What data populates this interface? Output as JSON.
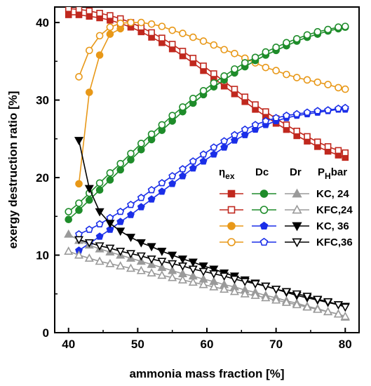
{
  "chart_data": {
    "type": "line",
    "title": "",
    "xlabel": "ammonia mass fraction [%]",
    "ylabel": "exergy destruction ratio [%]",
    "xlim": [
      38,
      82
    ],
    "ylim": [
      0,
      42
    ],
    "xticks": [
      40,
      50,
      60,
      70,
      80
    ],
    "yticks": [
      0,
      10,
      20,
      30,
      40
    ],
    "legend_position": "right-middle",
    "legend": {
      "headers": [
        "ηex",
        "Dc",
        "Dr",
        "PHbar"
      ],
      "rows": [
        "KC,  24",
        "KFC,24",
        "KC,  36",
        "KFC,36"
      ]
    },
    "series": [
      {
        "label": "ηex, KC, 24",
        "color": "#c0281e",
        "marker": "square-filled",
        "x": [
          40,
          41.5,
          43,
          44.5,
          46,
          47.5,
          49,
          50.5,
          52,
          53.5,
          55,
          56.5,
          58,
          59.5,
          61,
          62.5,
          64,
          65.5,
          67,
          68.5,
          70,
          71.5,
          73,
          74.5,
          76,
          77.5,
          79,
          80
        ],
        "y": [
          41.0,
          41.0,
          40.8,
          40.6,
          40.3,
          39.9,
          39.4,
          38.8,
          38.1,
          37.4,
          36.6,
          35.7,
          34.8,
          33.8,
          32.8,
          31.8,
          30.8,
          29.8,
          28.8,
          27.9,
          27.0,
          26.2,
          25.4,
          24.7,
          24.0,
          23.4,
          22.9,
          22.6
        ]
      },
      {
        "label": "ηex, KFC, 24",
        "color": "#c0281e",
        "marker": "square-open",
        "x": [
          40,
          41.5,
          43,
          44.5,
          46,
          47.5,
          49,
          50.5,
          52,
          53.5,
          55,
          56.5,
          58,
          59.5,
          61,
          62.5,
          64,
          65.5,
          67,
          68.5,
          70,
          71.5,
          73,
          74.5,
          76,
          77.5,
          79,
          80
        ],
        "y": [
          41.8,
          41.7,
          41.5,
          41.2,
          40.9,
          40.5,
          40.0,
          39.4,
          38.7,
          38.0,
          37.2,
          36.3,
          35.4,
          34.4,
          33.4,
          32.4,
          31.4,
          30.4,
          29.4,
          28.5,
          27.6,
          26.8,
          26.0,
          25.3,
          24.6,
          24.0,
          23.5,
          23.2
        ]
      },
      {
        "label": "ηex, KC, 36",
        "color": "#e89818",
        "marker": "circle-filled",
        "x": [
          41.5,
          43,
          44.5,
          46,
          47.5
        ],
        "y": [
          19.2,
          31.0,
          35.8,
          38.5,
          39.2
        ]
      },
      {
        "label": "ηex, KFC, 36",
        "color": "#e89818",
        "marker": "circle-open",
        "x": [
          41.5,
          43,
          44.5,
          46,
          47.5,
          49,
          50.5,
          52,
          53.5,
          55,
          56.5,
          58,
          59.5,
          61,
          62.5,
          64,
          65.5,
          67,
          68.5,
          70,
          71.5,
          73,
          74.5,
          76,
          77.5,
          79,
          80
        ],
        "y": [
          33.0,
          36.4,
          38.3,
          39.4,
          39.9,
          40.0,
          40.0,
          39.8,
          39.5,
          39.0,
          38.6,
          38.1,
          37.6,
          37.1,
          36.5,
          36.0,
          35.4,
          34.8,
          34.2,
          33.8,
          33.3,
          32.9,
          32.6,
          32.3,
          32.0,
          31.6,
          31.4
        ]
      },
      {
        "label": "Dc, KC, 24",
        "color": "#1e8c2a",
        "marker": "circle-filled",
        "x": [
          40,
          41.5,
          43,
          44.5,
          46,
          47.5,
          49,
          50.5,
          52,
          53.5,
          55,
          56.5,
          58,
          59.5,
          61,
          62.5,
          64,
          65.5,
          67,
          68.5,
          70,
          71.5,
          73,
          74.5,
          76,
          77.5,
          79,
          80
        ],
        "y": [
          14.6,
          15.8,
          17.1,
          18.4,
          19.7,
          21.0,
          22.3,
          23.6,
          24.9,
          26.1,
          27.3,
          28.5,
          29.6,
          30.7,
          31.7,
          32.6,
          33.5,
          34.3,
          35.1,
          35.8,
          36.4,
          37.0,
          37.6,
          38.1,
          38.5,
          38.9,
          39.2,
          39.4
        ]
      },
      {
        "label": "Dc, KFC, 24",
        "color": "#1e8c2a",
        "marker": "circle-open",
        "x": [
          40,
          41.5,
          43,
          44.5,
          46,
          47.5,
          49,
          50.5,
          52,
          53.5,
          55,
          56.5,
          58,
          59.5,
          61,
          62.5,
          64,
          65.5,
          67,
          68.5,
          70,
          71.5,
          73,
          74.5,
          76,
          77.5,
          79,
          80
        ],
        "y": [
          15.6,
          16.7,
          18.0,
          19.3,
          20.6,
          21.8,
          23.1,
          24.4,
          25.6,
          26.8,
          28.0,
          29.1,
          30.2,
          31.2,
          32.2,
          33.1,
          34.0,
          34.8,
          35.5,
          36.2,
          36.8,
          37.4,
          37.9,
          38.4,
          38.8,
          39.1,
          39.4,
          39.5
        ]
      },
      {
        "label": "Dc, KC, 36",
        "color": "#1a2ee8",
        "marker": "pentagon-filled",
        "x": [
          41.5,
          43,
          44.5,
          46,
          47.5,
          49,
          50.5,
          52,
          53.5,
          55,
          56.5,
          58,
          59.5,
          61,
          62.5,
          64,
          65.5,
          67,
          68.5,
          70,
          71.5,
          73,
          74.5,
          76,
          77.5,
          79,
          80
        ],
        "y": [
          10.6,
          11.5,
          12.4,
          13.3,
          14.3,
          15.2,
          16.2,
          17.2,
          18.2,
          19.2,
          20.2,
          21.2,
          22.1,
          23.0,
          23.9,
          24.8,
          25.5,
          26.2,
          26.8,
          27.3,
          27.7,
          28.0,
          28.2,
          28.4,
          28.6,
          28.8,
          28.8
        ]
      },
      {
        "label": "Dc, KFC, 36",
        "color": "#1a2ee8",
        "marker": "pentagon-open",
        "x": [
          41.5,
          43,
          44.5,
          46,
          47.5,
          49,
          50.5,
          52,
          53.5,
          55,
          56.5,
          58,
          59.5,
          61,
          62.5,
          64,
          65.5,
          67,
          68.5,
          70,
          71.5,
          73,
          74.5,
          76,
          77.5,
          79,
          80
        ],
        "y": [
          12.7,
          13.3,
          14.0,
          14.8,
          15.6,
          16.5,
          17.4,
          18.4,
          19.3,
          20.2,
          21.1,
          22.1,
          23.0,
          23.9,
          24.7,
          25.5,
          26.2,
          26.8,
          27.3,
          27.7,
          28.0,
          28.2,
          28.4,
          28.6,
          28.7,
          28.9,
          29.0
        ]
      },
      {
        "label": "Dr, KC, 24",
        "color": "#9a9a9a",
        "marker": "triangle-filled",
        "x": [
          40,
          41.5,
          43,
          44.5,
          46,
          47.5,
          49,
          50.5,
          52,
          53.5,
          55,
          56.5,
          58,
          59.5,
          61,
          62.5,
          64,
          65.5,
          67,
          68.5,
          70,
          71.5,
          73,
          74.5,
          76,
          77.5,
          79,
          80
        ],
        "y": [
          12.7,
          11.9,
          11.3,
          10.8,
          10.4,
          10.0,
          9.6,
          9.2,
          8.8,
          8.4,
          8.0,
          7.6,
          7.3,
          6.9,
          6.6,
          6.2,
          5.9,
          5.5,
          5.2,
          4.8,
          4.5,
          4.1,
          3.8,
          3.4,
          3.1,
          2.7,
          2.4,
          2.0
        ]
      },
      {
        "label": "Dr, KFC, 24",
        "color": "#9a9a9a",
        "marker": "triangle-open",
        "x": [
          40,
          41.5,
          43,
          44.5,
          46,
          47.5,
          49,
          50.5,
          52,
          53.5,
          55,
          56.5,
          58,
          59.5,
          61,
          62.5,
          64,
          65.5,
          67,
          68.5,
          70,
          71.5,
          73,
          74.5,
          76,
          77.5,
          79,
          80
        ],
        "y": [
          10.5,
          10.0,
          9.6,
          9.2,
          8.9,
          8.6,
          8.3,
          8.0,
          7.7,
          7.4,
          7.1,
          6.8,
          6.5,
          6.2,
          5.9,
          5.6,
          5.3,
          5.0,
          4.8,
          4.5,
          4.2,
          3.9,
          3.6,
          3.3,
          3.0,
          2.7,
          2.4,
          2.1
        ]
      },
      {
        "label": "Dr, KC, 36",
        "color": "#000000",
        "marker": "triangle-down-filled",
        "x": [
          41.5,
          43,
          44.5,
          46,
          47.5,
          49,
          50.5,
          52,
          53.5,
          55,
          56.5,
          58,
          59.5,
          61,
          62.5,
          64,
          65.5,
          67,
          68.5,
          70,
          71.5,
          73,
          74.5,
          76,
          77.5,
          79,
          80
        ],
        "y": [
          24.8,
          18.6,
          15.6,
          14.1,
          13.1,
          12.3,
          11.6,
          11.1,
          10.5,
          10.0,
          9.5,
          9.1,
          8.6,
          8.2,
          7.7,
          7.3,
          6.8,
          6.4,
          6.0,
          5.6,
          5.2,
          4.8,
          4.5,
          4.2,
          3.9,
          3.6,
          3.4
        ]
      },
      {
        "label": "Dr, KFC, 36",
        "color": "#000000",
        "marker": "triangle-down-open",
        "x": [
          41.5,
          43,
          44.5,
          46,
          47.5,
          49,
          50.5,
          52,
          53.5,
          55,
          56.5,
          58,
          59.5,
          61,
          62.5,
          64,
          65.5,
          67,
          68.5,
          70,
          71.5,
          73,
          74.5,
          76,
          77.5,
          79,
          80
        ],
        "y": [
          12.0,
          11.6,
          11.2,
          10.9,
          10.5,
          10.2,
          9.9,
          9.5,
          9.2,
          8.9,
          8.6,
          8.2,
          7.9,
          7.6,
          7.3,
          6.9,
          6.6,
          6.3,
          6.0,
          5.6,
          5.3,
          5.0,
          4.7,
          4.3,
          4.0,
          3.6,
          3.3
        ]
      }
    ]
  }
}
